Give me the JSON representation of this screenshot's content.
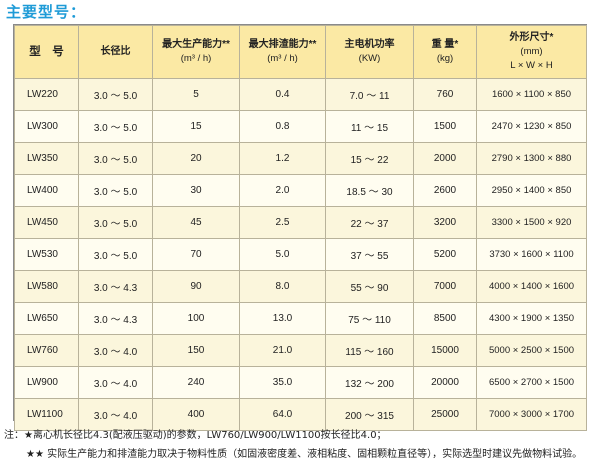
{
  "title": "主要型号：",
  "headers": [
    {
      "line1": "型　号",
      "line2": "",
      "line3": ""
    },
    {
      "line1": "长径比",
      "line2": "",
      "line3": ""
    },
    {
      "line1": "最大生产能力**",
      "line2": "(m³ / h)",
      "line3": ""
    },
    {
      "line1": "最大排渣能力**",
      "line2": "(m³ / h)",
      "line3": ""
    },
    {
      "line1": "主电机功率",
      "line2": "(KW)",
      "line3": ""
    },
    {
      "line1": "重 量*",
      "line2": "(kg)",
      "line3": ""
    },
    {
      "line1": "外形尺寸*",
      "line2": "(mm)",
      "line3": "L × W × H"
    }
  ],
  "rows": [
    {
      "model": "LW220",
      "ratio": "3.0 ～ 5.0",
      "capacity": "5",
      "slag": "0.4",
      "power": "7.0 ～ 11",
      "weight": "760",
      "dims": "1600 × 1100 × 850"
    },
    {
      "model": "LW300",
      "ratio": "3.0 ～ 5.0",
      "capacity": "15",
      "slag": "0.8",
      "power": "11 ～ 15",
      "weight": "1500",
      "dims": "2470 × 1230 × 850"
    },
    {
      "model": "LW350",
      "ratio": "3.0 ～ 5.0",
      "capacity": "20",
      "slag": "1.2",
      "power": "15 ～ 22",
      "weight": "2000",
      "dims": "2790 × 1300 × 880"
    },
    {
      "model": "LW400",
      "ratio": "3.0 ～ 5.0",
      "capacity": "30",
      "slag": "2.0",
      "power": "18.5 ～ 30",
      "weight": "2600",
      "dims": "2950 × 1400 × 850"
    },
    {
      "model": "LW450",
      "ratio": "3.0 ～ 5.0",
      "capacity": "45",
      "slag": "2.5",
      "power": "22 ～ 37",
      "weight": "3200",
      "dims": "3300 × 1500 × 920"
    },
    {
      "model": "LW530",
      "ratio": "3.0 ～ 5.0",
      "capacity": "70",
      "slag": "5.0",
      "power": "37 ～ 55",
      "weight": "5200",
      "dims": "3730 × 1600 × 1100"
    },
    {
      "model": "LW580",
      "ratio": "3.0 ～ 4.3",
      "capacity": "90",
      "slag": "8.0",
      "power": "55 ～ 90",
      "weight": "7000",
      "dims": "4000 × 1400 × 1600"
    },
    {
      "model": "LW650",
      "ratio": "3.0 ～ 4.3",
      "capacity": "100",
      "slag": "13.0",
      "power": "75 ～ 110",
      "weight": "8500",
      "dims": "4300 × 1900 × 1350"
    },
    {
      "model": "LW760",
      "ratio": "3.0 ～ 4.0",
      "capacity": "150",
      "slag": "21.0",
      "power": "115 ～ 160",
      "weight": "15000",
      "dims": "5000 × 2500 × 1500"
    },
    {
      "model": "LW900",
      "ratio": "3.0 ～ 4.0",
      "capacity": "240",
      "slag": "35.0",
      "power": "132 ～ 200",
      "weight": "20000",
      "dims": "6500 × 2700 × 1500"
    },
    {
      "model": "LW1100",
      "ratio": "3.0 ～ 4.0",
      "capacity": "400",
      "slag": "64.0",
      "power": "200 ～ 315",
      "weight": "25000",
      "dims": "7000 × 3000 × 1700"
    }
  ],
  "notes": {
    "note1": "注：★离心机长径比4.3(配液压驱动)的参数，LW760/LW900/LW1100按长径比4.0；",
    "note2": "★★ 实际生产能力和排渣能力取决于物料性质（如固液密度差、液相粘度、固相颗粒直径等），实际选型时建议先做物料试验。"
  },
  "colors": {
    "title": "#1E9BD7",
    "header_bg": "#fbe9a4",
    "row_bg": "#fbf6dc"
  }
}
